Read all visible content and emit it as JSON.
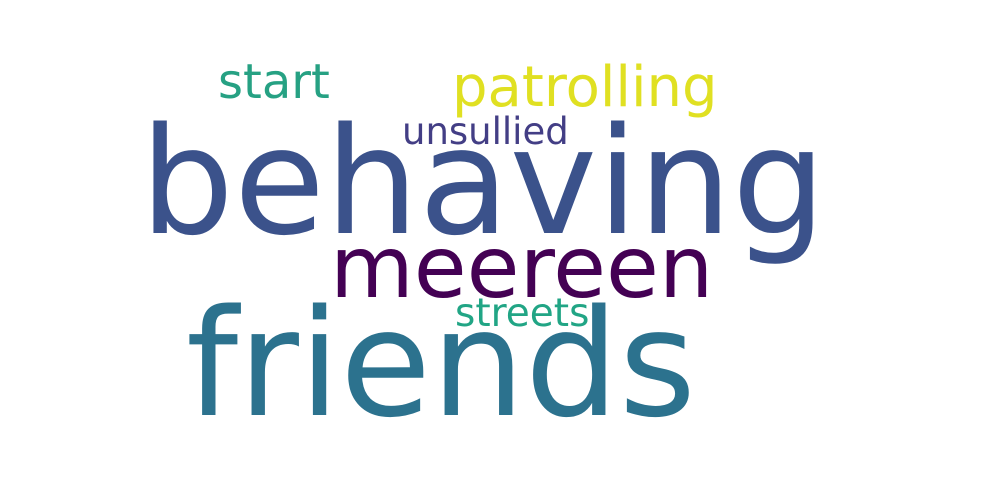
{
  "word_cloud": {
    "words": {
      "behaving": {
        "text": "behaving",
        "color": "#3b528b"
      },
      "friends": {
        "text": "friends",
        "color": "#2c728e"
      },
      "meereen": {
        "text": "meereen",
        "color": "#440154"
      },
      "patrolling": {
        "text": "patrolling",
        "color": "#e0e022"
      },
      "start": {
        "text": "start",
        "color": "#26a183"
      },
      "unsullied": {
        "text": "unsullied",
        "color": "#433e85"
      },
      "streets": {
        "text": "streets",
        "color": "#21a585"
      }
    }
  }
}
